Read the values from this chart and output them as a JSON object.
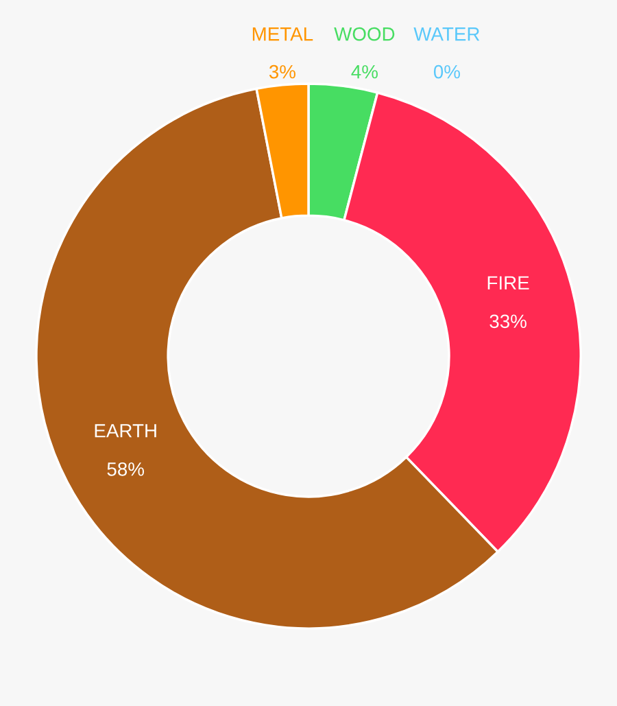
{
  "chart_data": {
    "type": "donut",
    "categories": [
      "WOOD",
      "WATER",
      "FIRE",
      "EARTH",
      "METAL"
    ],
    "values": [
      4,
      0,
      33,
      58,
      3
    ],
    "colors": [
      "#47dd62",
      "#5ac8fa",
      "#ff2a52",
      "#af5e18",
      "#ff9500"
    ],
    "value_labels": [
      "4%",
      "0%",
      "33%",
      "58%",
      "3%"
    ]
  }
}
